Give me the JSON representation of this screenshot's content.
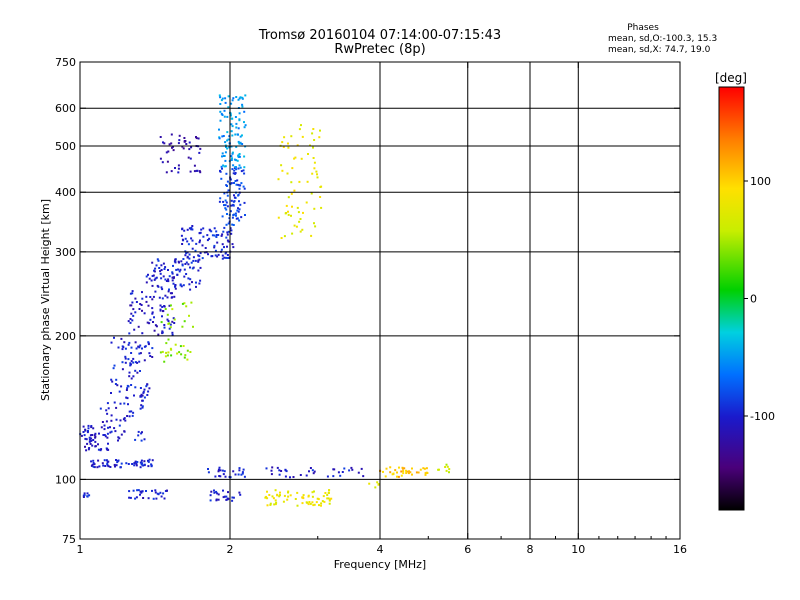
{
  "chart_data": {
    "type": "scatter",
    "title": "Tromsø 20160104 07:14:00-07:15:43",
    "subtitle": "RwPretec (8p)",
    "xlabel": "Frequency [MHz]",
    "ylabel": "Stationary phase Virtual Height [km]",
    "x_scale": "log",
    "y_scale": "log",
    "xlim": [
      1,
      16
    ],
    "ylim": [
      75,
      750
    ],
    "x_ticks": [
      1,
      2,
      4,
      6,
      8,
      10,
      16
    ],
    "x_ticklabels": [
      "1",
      "2",
      "4",
      "6",
      "8",
      "10",
      "16"
    ],
    "y_ticks": [
      75,
      100,
      200,
      300,
      400,
      500,
      600,
      750
    ],
    "y_ticklabels": [
      "75",
      "100",
      "200",
      "300",
      "400",
      "500",
      "600",
      "750"
    ],
    "x_gridlines": [
      2,
      4,
      6,
      8,
      10
    ],
    "y_gridlines": [
      100,
      200,
      300,
      400,
      500,
      600
    ],
    "grid": true,
    "legend": {
      "title": "Phases",
      "lines": [
        "mean, sd,O:-100.3, 15.3",
        "mean, sd,X: 74.7, 19.0"
      ],
      "placement": "top-right"
    },
    "colorbar": {
      "label": "[deg]",
      "ticks": [
        100,
        0,
        -100
      ],
      "ticklabels": [
        "100",
        "0",
        "-100"
      ],
      "range": [
        -180,
        180
      ],
      "placement": "right",
      "colormap": "rainbow"
    },
    "series": [
      {
        "mode": "O",
        "phase_mean_deg": -100.3,
        "phase_sd_deg": 15.3,
        "regions": [
          {
            "x_range": [
              1.0,
              1.15
            ],
            "y_range": [
              115,
              130
            ],
            "count": 55,
            "phase": -105
          },
          {
            "x_range": [
              1.05,
              1.4
            ],
            "y_range": [
              106,
              110
            ],
            "count": 60,
            "phase": -100
          },
          {
            "x_range": [
              1.1,
              1.35
            ],
            "y_range": [
              120,
              150
            ],
            "count": 60,
            "phase": -100
          },
          {
            "x_range": [
              1.15,
              1.4
            ],
            "y_range": [
              150,
              200
            ],
            "count": 80,
            "phase": -100
          },
          {
            "x_range": [
              1.25,
              1.55
            ],
            "y_range": [
              200,
              250
            ],
            "count": 80,
            "phase": -105
          },
          {
            "x_range": [
              1.35,
              1.75
            ],
            "y_range": [
              250,
              290
            ],
            "count": 100,
            "phase": -100
          },
          {
            "x_range": [
              1.6,
              2.05
            ],
            "y_range": [
              290,
              340
            ],
            "count": 100,
            "phase": -95
          },
          {
            "x_range": [
              1.9,
              2.15
            ],
            "y_range": [
              340,
              450
            ],
            "count": 90,
            "phase": -85
          },
          {
            "x_range": [
              1.9,
              2.15
            ],
            "y_range": [
              450,
              640
            ],
            "count": 110,
            "phase": -50
          },
          {
            "x_range": [
              1.45,
              1.75
            ],
            "y_range": [
              440,
              530
            ],
            "count": 50,
            "phase": -115
          },
          {
            "x_range": [
              1.8,
              2.15
            ],
            "y_range": [
              101,
              106
            ],
            "count": 25,
            "phase": -100
          },
          {
            "x_range": [
              2.35,
              3.8
            ],
            "y_range": [
              101,
              106
            ],
            "count": 35,
            "phase": -100
          },
          {
            "x_range": [
              1.0,
              1.05
            ],
            "y_range": [
              91,
              94
            ],
            "count": 8,
            "phase": -100
          },
          {
            "x_range": [
              1.25,
              1.5
            ],
            "y_range": [
              91,
              95
            ],
            "count": 30,
            "phase": -100
          },
          {
            "x_range": [
              1.8,
              2.1
            ],
            "y_range": [
              90,
              95
            ],
            "count": 25,
            "phase": -100
          }
        ]
      },
      {
        "mode": "X",
        "phase_mean_deg": 74.7,
        "phase_sd_deg": 19.0,
        "regions": [
          {
            "x_range": [
              2.5,
              3.05
            ],
            "y_range": [
              320,
              560
            ],
            "count": 70,
            "phase": 80
          },
          {
            "x_range": [
              1.45,
              1.7
            ],
            "y_range": [
              175,
              235
            ],
            "count": 40,
            "phase": 40
          },
          {
            "x_range": [
              2.35,
              3.2
            ],
            "y_range": [
              88,
              95
            ],
            "count": 70,
            "phase": 80
          },
          {
            "x_range": [
              4.0,
              5.0
            ],
            "y_range": [
              101,
              106
            ],
            "count": 40,
            "phase": 110
          },
          {
            "x_range": [
              5.2,
              5.6
            ],
            "y_range": [
              103,
              108
            ],
            "count": 8,
            "phase": 60
          },
          {
            "x_range": [
              3.8,
              4.0
            ],
            "y_range": [
              96,
              100
            ],
            "count": 5,
            "phase": 80
          }
        ]
      }
    ]
  }
}
